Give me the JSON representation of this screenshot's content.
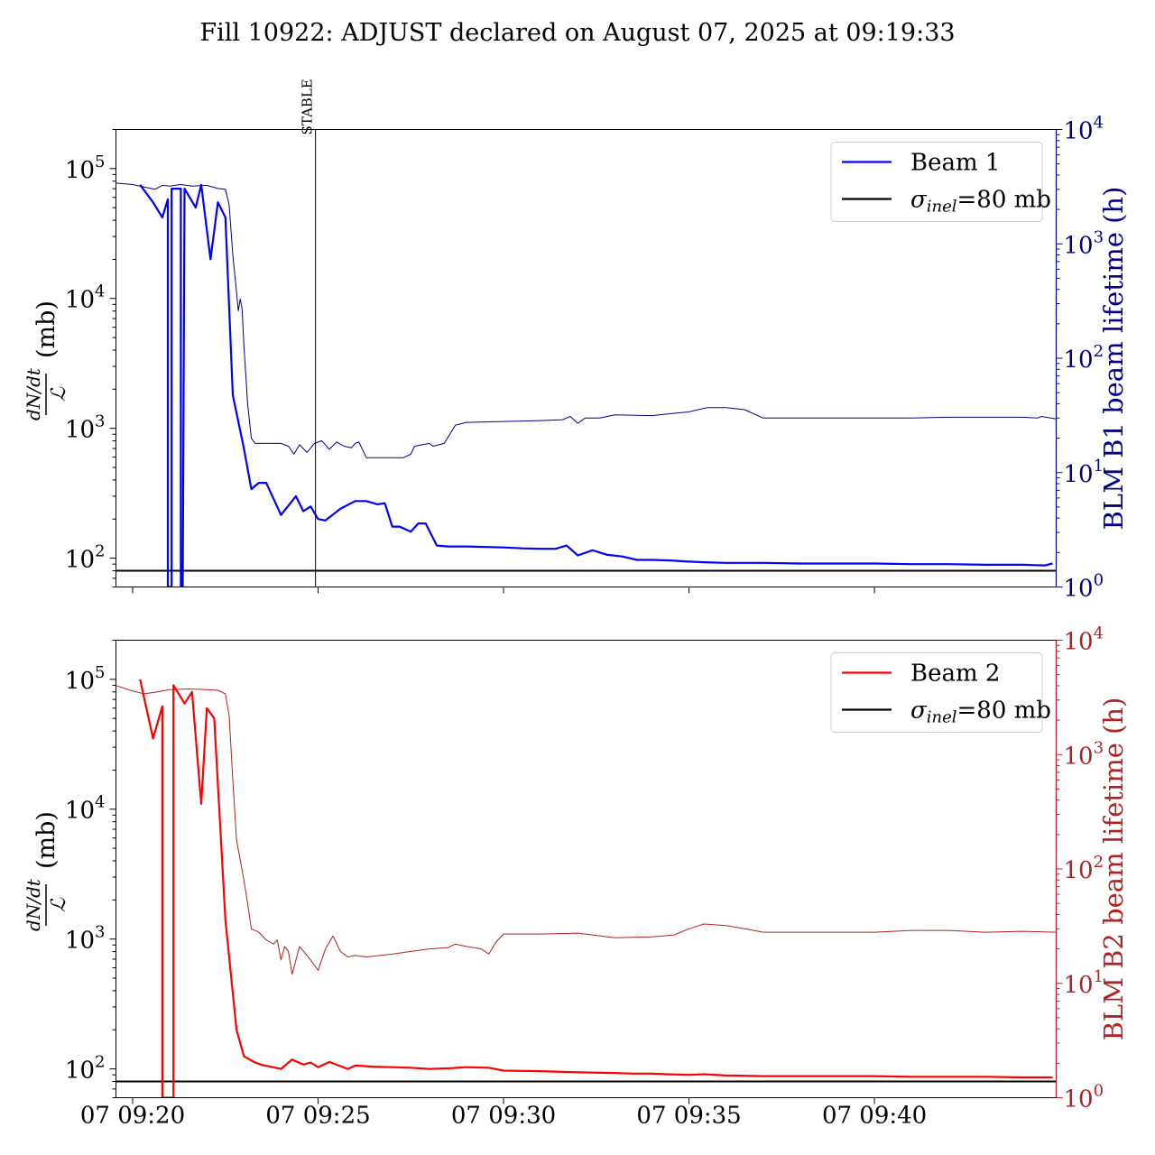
{
  "figure": {
    "title": "Fill 10922: ADJUST declared on August 07, 2025 at 09:19:33",
    "x_tick_labels": [
      "07 09:20",
      "07 09:25",
      "07 09:30",
      "07 09:35",
      "07 09:40"
    ]
  },
  "chart_data": [
    {
      "type": "line",
      "panel": "top",
      "xlabel": "",
      "ylabel_left": "dN/dt / ℒ (mb)",
      "ylabel_right": "BLM B1 beam lifetime (h)",
      "yscale_left": "log",
      "yscale_right": "log",
      "ylim_left": [
        60,
        200000
      ],
      "ylim_right": [
        1,
        10000
      ],
      "x_unit": "minutes after 09:20 on Aug 07, 2025",
      "xlim": [
        -0.45,
        24.9
      ],
      "x_ticks": [
        0,
        5,
        10,
        15,
        20
      ],
      "left_ticks": [
        "10^2",
        "10^3",
        "10^4",
        "10^5"
      ],
      "right_ticks": [
        "10^0",
        "10^1",
        "10^2",
        "10^3",
        "10^4"
      ],
      "right_axis_color": "#00008b",
      "legend_position": "upper right",
      "annotation": {
        "text": "STABLE",
        "x": 4.93
      },
      "series": [
        {
          "name": "Beam 1",
          "axis": "left",
          "color": "#0000ff",
          "points": [
            [
              0.2,
              75000
            ],
            [
              0.55,
              55000
            ],
            [
              0.8,
              42000
            ],
            [
              0.95,
              58000
            ],
            [
              0.95,
              60
            ],
            [
              1.05,
              60
            ],
            [
              1.05,
              70000
            ],
            [
              1.3,
              70000
            ],
            [
              1.3,
              60
            ],
            [
              1.35,
              60
            ],
            [
              1.4,
              70000
            ],
            [
              1.7,
              50000
            ],
            [
              1.85,
              75000
            ],
            [
              2.1,
              20000
            ],
            [
              2.3,
              55000
            ],
            [
              2.5,
              42000
            ],
            [
              2.7,
              1800
            ],
            [
              3.0,
              700
            ],
            [
              3.2,
              340
            ],
            [
              3.4,
              380
            ],
            [
              3.6,
              380
            ],
            [
              4.0,
              215
            ],
            [
              4.4,
              300
            ],
            [
              4.6,
              230
            ],
            [
              4.8,
              250
            ],
            [
              5.0,
              200
            ],
            [
              5.2,
              195
            ],
            [
              5.6,
              240
            ],
            [
              6.0,
              275
            ],
            [
              6.3,
              275
            ],
            [
              6.6,
              260
            ],
            [
              6.8,
              265
            ],
            [
              7.0,
              175
            ],
            [
              7.2,
              175
            ],
            [
              7.5,
              160
            ],
            [
              7.7,
              185
            ],
            [
              7.9,
              185
            ],
            [
              8.2,
              125
            ],
            [
              8.5,
              123
            ],
            [
              9.0,
              123
            ],
            [
              10.0,
              121
            ],
            [
              10.5,
              119
            ],
            [
              11.0,
              118
            ],
            [
              11.4,
              118
            ],
            [
              11.7,
              125
            ],
            [
              12.0,
              105
            ],
            [
              12.4,
              115
            ],
            [
              12.8,
              106
            ],
            [
              13.2,
              103
            ],
            [
              13.6,
              97
            ],
            [
              14.0,
              97
            ],
            [
              14.5,
              96
            ],
            [
              15.0,
              94
            ],
            [
              15.4,
              93
            ],
            [
              16.0,
              92
            ],
            [
              17.0,
              92
            ],
            [
              18.0,
              91
            ],
            [
              19.0,
              91
            ],
            [
              20.0,
              91
            ],
            [
              21.0,
              90
            ],
            [
              22.0,
              90
            ],
            [
              23.0,
              89
            ],
            [
              24.0,
              89
            ],
            [
              24.6,
              88
            ],
            [
              24.8,
              91
            ]
          ]
        },
        {
          "name": "",
          "axis": "right",
          "color": "#00008b",
          "points": [
            [
              -0.45,
              3400
            ],
            [
              0.0,
              3300
            ],
            [
              0.3,
              3150
            ],
            [
              0.6,
              3000
            ],
            [
              0.8,
              3250
            ],
            [
              1.0,
              3200
            ],
            [
              1.3,
              3300
            ],
            [
              1.6,
              3200
            ],
            [
              2.0,
              3250
            ],
            [
              2.3,
              3050
            ],
            [
              2.5,
              3000
            ],
            [
              2.6,
              2200
            ],
            [
              2.7,
              800
            ],
            [
              2.8,
              380
            ],
            [
              2.85,
              260
            ],
            [
              2.9,
              330
            ],
            [
              2.95,
              270
            ],
            [
              3.0,
              130
            ],
            [
              3.1,
              40
            ],
            [
              3.2,
              20
            ],
            [
              3.3,
              18
            ],
            [
              4.0,
              18
            ],
            [
              4.2,
              17
            ],
            [
              4.35,
              14.5
            ],
            [
              4.5,
              17.5
            ],
            [
              4.7,
              15
            ],
            [
              4.9,
              18
            ],
            [
              5.1,
              19
            ],
            [
              5.3,
              16
            ],
            [
              5.5,
              18.5
            ],
            [
              5.7,
              17
            ],
            [
              5.9,
              16.5
            ],
            [
              6.0,
              18
            ],
            [
              6.1,
              18.5
            ],
            [
              6.3,
              13.5
            ],
            [
              7.0,
              13.5
            ],
            [
              7.3,
              13.5
            ],
            [
              7.5,
              14.5
            ],
            [
              7.6,
              17
            ],
            [
              8.0,
              18
            ],
            [
              8.1,
              17
            ],
            [
              8.4,
              18
            ],
            [
              8.7,
              26
            ],
            [
              9.0,
              27.5
            ],
            [
              10.0,
              28
            ],
            [
              11.0,
              28.5
            ],
            [
              11.6,
              29
            ],
            [
              11.8,
              31
            ],
            [
              12.0,
              27
            ],
            [
              12.2,
              30
            ],
            [
              12.6,
              30
            ],
            [
              13.0,
              32
            ],
            [
              14.0,
              31.5
            ],
            [
              14.6,
              33
            ],
            [
              15.0,
              34
            ],
            [
              15.5,
              37
            ],
            [
              16.0,
              37
            ],
            [
              16.5,
              35.5
            ],
            [
              17.0,
              30
            ],
            [
              18.0,
              30
            ],
            [
              19.0,
              30
            ],
            [
              20.0,
              30
            ],
            [
              21.0,
              30
            ],
            [
              22.0,
              30.5
            ],
            [
              23.0,
              30.5
            ],
            [
              24.0,
              30.5
            ],
            [
              24.4,
              30
            ],
            [
              24.5,
              31
            ],
            [
              24.9,
              29.5
            ]
          ]
        },
        {
          "name": "σinel=80 mb",
          "axis": "left",
          "color": "#000000",
          "points": [
            [
              -0.45,
              80
            ],
            [
              24.9,
              80
            ]
          ]
        }
      ]
    },
    {
      "type": "line",
      "panel": "bottom",
      "xlabel": "",
      "ylabel_left": "dN/dt / ℒ (mb)",
      "ylabel_right": "BLM B2 beam lifetime (h)",
      "yscale_left": "log",
      "yscale_right": "log",
      "ylim_left": [
        60,
        200000
      ],
      "ylim_right": [
        1,
        10000
      ],
      "x_unit": "minutes after 09:20 on Aug 07, 2025",
      "xlim": [
        -0.45,
        24.9
      ],
      "x_ticks": [
        0,
        5,
        10,
        15,
        20
      ],
      "left_ticks": [
        "10^2",
        "10^3",
        "10^4",
        "10^5"
      ],
      "right_ticks": [
        "10^0",
        "10^1",
        "10^2",
        "10^3",
        "10^4"
      ],
      "right_axis_color": "#b22222",
      "legend_position": "upper right",
      "series": [
        {
          "name": "Beam 2",
          "axis": "left",
          "color": "#ff0000",
          "points": [
            [
              0.2,
              100000
            ],
            [
              0.55,
              35000
            ],
            [
              0.8,
              62000
            ],
            [
              0.8,
              60
            ],
            [
              1.1,
              60
            ],
            [
              1.1,
              90000
            ],
            [
              1.4,
              65000
            ],
            [
              1.6,
              80000
            ],
            [
              1.85,
              11000
            ],
            [
              2.0,
              60000
            ],
            [
              2.2,
              50000
            ],
            [
              2.5,
              1400
            ],
            [
              2.8,
              200
            ],
            [
              3.0,
              125
            ],
            [
              3.3,
              112
            ],
            [
              3.5,
              107
            ],
            [
              4.0,
              100
            ],
            [
              4.3,
              118
            ],
            [
              4.6,
              108
            ],
            [
              4.8,
              112
            ],
            [
              5.0,
              103
            ],
            [
              5.3,
              113
            ],
            [
              5.6,
              105
            ],
            [
              5.8,
              100
            ],
            [
              6.0,
              106
            ],
            [
              6.5,
              104
            ],
            [
              7.0,
              103
            ],
            [
              7.5,
              102
            ],
            [
              8.0,
              100
            ],
            [
              8.5,
              101
            ],
            [
              9.0,
              103
            ],
            [
              9.6,
              102
            ],
            [
              10.0,
              97
            ],
            [
              11.0,
              96
            ],
            [
              12.0,
              94
            ],
            [
              13.0,
              93
            ],
            [
              13.5,
              92
            ],
            [
              14.0,
              92
            ],
            [
              14.4,
              91
            ],
            [
              15.0,
              90
            ],
            [
              15.4,
              91
            ],
            [
              16.0,
              89
            ],
            [
              17.0,
              88
            ],
            [
              18.0,
              88
            ],
            [
              19.0,
              88
            ],
            [
              20.0,
              88
            ],
            [
              21.0,
              87
            ],
            [
              22.0,
              87
            ],
            [
              23.0,
              87
            ],
            [
              24.0,
              86
            ],
            [
              24.8,
              86
            ]
          ]
        },
        {
          "name": "",
          "axis": "right",
          "color": "#b22222",
          "points": [
            [
              -0.45,
              4000
            ],
            [
              0.0,
              3600
            ],
            [
              0.3,
              3400
            ],
            [
              0.6,
              3500
            ],
            [
              1.0,
              3700
            ],
            [
              1.5,
              3750
            ],
            [
              2.0,
              3700
            ],
            [
              2.3,
              3650
            ],
            [
              2.5,
              3400
            ],
            [
              2.6,
              2200
            ],
            [
              2.7,
              600
            ],
            [
              2.8,
              180
            ],
            [
              2.9,
              120
            ],
            [
              3.0,
              80
            ],
            [
              3.1,
              50
            ],
            [
              3.2,
              30
            ],
            [
              3.4,
              28
            ],
            [
              3.6,
              24
            ],
            [
              3.8,
              22
            ],
            [
              3.9,
              24
            ],
            [
              4.0,
              16
            ],
            [
              4.1,
              21
            ],
            [
              4.2,
              19
            ],
            [
              4.3,
              12
            ],
            [
              4.5,
              21
            ],
            [
              4.8,
              16
            ],
            [
              5.0,
              13
            ],
            [
              5.2,
              20
            ],
            [
              5.4,
              26
            ],
            [
              5.6,
              19
            ],
            [
              5.8,
              17
            ],
            [
              6.0,
              17.5
            ],
            [
              6.3,
              17
            ],
            [
              7.0,
              18
            ],
            [
              7.5,
              19
            ],
            [
              8.0,
              20
            ],
            [
              8.5,
              20.5
            ],
            [
              8.7,
              22
            ],
            [
              9.0,
              21
            ],
            [
              9.4,
              20
            ],
            [
              9.6,
              18
            ],
            [
              9.8,
              23
            ],
            [
              10.0,
              27
            ],
            [
              11.0,
              27
            ],
            [
              12.0,
              27.5
            ],
            [
              13.0,
              25
            ],
            [
              14.0,
              25.5
            ],
            [
              14.6,
              26.5
            ],
            [
              15.0,
              30
            ],
            [
              15.4,
              33
            ],
            [
              16.0,
              32
            ],
            [
              16.5,
              30
            ],
            [
              17.0,
              28
            ],
            [
              18.0,
              28
            ],
            [
              19.0,
              28
            ],
            [
              20.0,
              28
            ],
            [
              21.0,
              29
            ],
            [
              22.0,
              29
            ],
            [
              23.0,
              28
            ],
            [
              24.0,
              28.5
            ],
            [
              24.9,
              28
            ]
          ]
        },
        {
          "name": "σinel=80 mb",
          "axis": "left",
          "color": "#000000",
          "points": [
            [
              -0.45,
              80
            ],
            [
              24.9,
              80
            ]
          ]
        }
      ]
    }
  ]
}
